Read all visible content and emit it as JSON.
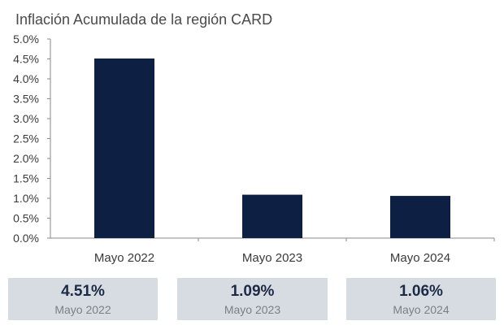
{
  "chart_data": {
    "type": "bar",
    "title": "Inflación Acumulada de la región CARD",
    "categories": [
      "Mayo 2022",
      "Mayo 2023",
      "Mayo 2024"
    ],
    "values": [
      4.51,
      1.09,
      1.06
    ],
    "ylim": [
      0,
      5
    ],
    "yticks": [
      "0.0%",
      "0.5%",
      "1.0%",
      "1.5%",
      "2.0%",
      "2.5%",
      "3.0%",
      "3.5%",
      "4.0%",
      "4.5%",
      "5.0%"
    ],
    "xlabel": "",
    "ylabel": "",
    "grid": false,
    "bar_color": "#0d1f42"
  },
  "summary_cards": [
    {
      "value": "4.51%",
      "label": "Mayo 2022"
    },
    {
      "value": "1.09%",
      "label": "Mayo 2023"
    },
    {
      "value": "1.06%",
      "label": "Mayo 2024"
    }
  ]
}
